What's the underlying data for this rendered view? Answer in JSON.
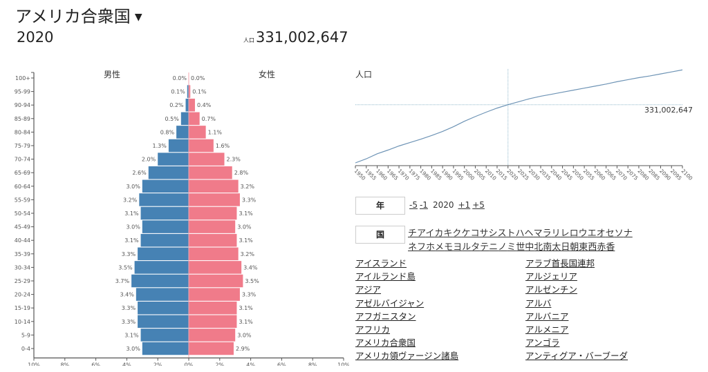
{
  "header": {
    "country": "アメリカ合衆国",
    "caret": "▼",
    "year": "2020",
    "pop_label": "人口",
    "population": "331,002,647"
  },
  "colors": {
    "male": "#4682b4",
    "female": "#f07b8a",
    "line": "#6d93b5",
    "ref": "#8fb8cc"
  },
  "chart_data": [
    {
      "type": "bar",
      "title": "",
      "series_labels": {
        "male": "男性",
        "female": "女性"
      },
      "categories": [
        "100+",
        "95-99",
        "90-94",
        "85-89",
        "80-84",
        "75-79",
        "70-74",
        "65-69",
        "60-64",
        "55-59",
        "50-54",
        "45-49",
        "40-44",
        "35-39",
        "30-34",
        "25-29",
        "20-24",
        "15-19",
        "10-14",
        "5-9",
        "0-4"
      ],
      "series": [
        {
          "name": "男性",
          "values": [
            0.0,
            0.1,
            0.2,
            0.5,
            0.8,
            1.3,
            2.0,
            2.6,
            3.0,
            3.2,
            3.1,
            3.0,
            3.1,
            3.3,
            3.5,
            3.7,
            3.4,
            3.3,
            3.3,
            3.1,
            3.0
          ]
        },
        {
          "name": "女性",
          "values": [
            0.0,
            0.1,
            0.4,
            0.7,
            1.1,
            1.6,
            2.3,
            2.8,
            3.2,
            3.3,
            3.1,
            3.0,
            3.1,
            3.2,
            3.4,
            3.5,
            3.3,
            3.1,
            3.1,
            3.0,
            2.9
          ]
        }
      ],
      "labels": {
        "male": [
          "0.0%",
          "0.1%",
          "0.2%",
          "0.5%",
          "0.8%",
          "1.3%",
          "2.0%",
          "2.6%",
          "3.0%",
          "3.2%",
          "3.1%",
          "3.0%",
          "3.1%",
          "3.3%",
          "3.5%",
          "3.7%",
          "3.4%",
          "3.3%",
          "3.3%",
          "3.1%",
          "3.0%"
        ],
        "female": [
          "0.0%",
          "0.1%",
          "0.4%",
          "0.7%",
          "1.1%",
          "1.6%",
          "2.3%",
          "2.8%",
          "3.2%",
          "3.3%",
          "3.1%",
          "3.0%",
          "3.1%",
          "3.2%",
          "3.4%",
          "3.5%",
          "3.3%",
          "3.1%",
          "3.1%",
          "3.0%",
          "2.9%"
        ]
      },
      "xlim": [
        -10,
        10
      ],
      "xticks": [
        "10%",
        "8%",
        "6%",
        "4%",
        "2%",
        "0%",
        "2%",
        "4%",
        "6%",
        "8%",
        "10%"
      ],
      "xtick_values": [
        -10,
        -8,
        -6,
        -4,
        -2,
        0,
        2,
        4,
        6,
        8,
        10
      ]
    },
    {
      "type": "line",
      "title": "人口",
      "x": [
        1950,
        1955,
        1960,
        1965,
        1970,
        1975,
        1980,
        1985,
        1990,
        1995,
        2000,
        2005,
        2010,
        2015,
        2020,
        2025,
        2030,
        2035,
        2040,
        2045,
        2050,
        2055,
        2060,
        2065,
        2070,
        2075,
        2080,
        2085,
        2090,
        2095,
        2100
      ],
      "y_millions": [
        159,
        171,
        186,
        197,
        209,
        219,
        229,
        240,
        252,
        266,
        282,
        296,
        309,
        321,
        331,
        340,
        349,
        356,
        362,
        368,
        374,
        380,
        386,
        392,
        399,
        405,
        411,
        416,
        422,
        428,
        434
      ],
      "xlim": [
        1950,
        2100
      ],
      "ylim": [
        150,
        440
      ],
      "xticks": [
        "1950",
        "1955",
        "1960",
        "1965",
        "1970",
        "1975",
        "1980",
        "1985",
        "1990",
        "1995",
        "2000",
        "2005",
        "2010",
        "2015",
        "2020",
        "2025",
        "2030",
        "2035",
        "2040",
        "2045",
        "2050",
        "2055",
        "2060",
        "2065",
        "2070",
        "2075",
        "2080",
        "2085",
        "2090",
        "2095",
        "2100"
      ],
      "reference": {
        "year": 2020,
        "value_millions": 331.002647,
        "label": "331,002,647"
      }
    }
  ],
  "controls": {
    "year_label": "年",
    "year_links": [
      "-5",
      "-1",
      "+1",
      "+5"
    ],
    "current_year": "2020",
    "country_label": "国",
    "kana_row1": [
      "チ",
      "ア",
      "イ",
      "カ",
      "キ",
      "ク",
      "ケ",
      "コ",
      "サ",
      "シ",
      "ス",
      "ト",
      "ハ",
      "ヘ",
      "マ",
      "ラ",
      "リ",
      "レ",
      "ロ",
      "ウ",
      "エ",
      "オ",
      "セ",
      "ソ",
      "ナ"
    ],
    "kana_row2": [
      "ネ",
      "フ",
      "ホ",
      "メ",
      "モ",
      "ヨ",
      "ル",
      "タ",
      "テ",
      "ニ",
      "ノ",
      "ミ",
      "世",
      "中",
      "北",
      "南",
      "太",
      "日",
      "朝",
      "東",
      "西",
      "赤",
      "香"
    ]
  },
  "countries": {
    "col1": [
      "アイスランド",
      "アイルランド島",
      "アジア",
      "アゼルバイジャン",
      "アフガニスタン",
      "アフリカ",
      "アメリカ合衆国",
      "アメリカ領ヴァージン諸島"
    ],
    "col2": [
      "アラブ首長国連邦",
      "アルジェリア",
      "アルゼンチン",
      "アルバ",
      "アルバニア",
      "アルメニア",
      "アンゴラ",
      "アンティグア・バーブーダ"
    ]
  }
}
